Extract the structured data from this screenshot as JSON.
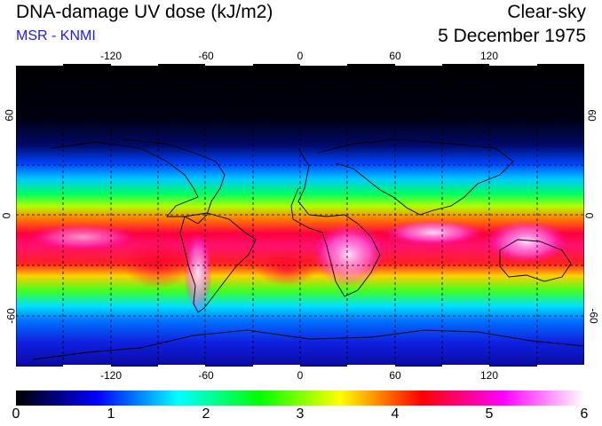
{
  "header": {
    "title": "DNA-damage UV dose (kJ/m2)",
    "subtitle": "MSR - KNMI",
    "condition": "Clear-sky",
    "date": "5 December 1975"
  },
  "map": {
    "lon_ticks": [
      "-120",
      "-60",
      "0",
      "60",
      "120"
    ],
    "lat_ticks": [
      "60",
      "0",
      "-60"
    ],
    "lon_range": [
      -180,
      180
    ],
    "lat_range": [
      -90,
      90
    ],
    "grid": "dashed every 30 degrees"
  },
  "colorbar": {
    "labels": [
      "0",
      "1",
      "2",
      "3",
      "4",
      "5",
      "6"
    ],
    "min": 0,
    "max": 6,
    "colors": [
      "#000000",
      "#0000ff",
      "#00ffff",
      "#00ff00",
      "#ffff00",
      "#ff0000",
      "#ff00ff",
      "#ffffff"
    ]
  }
}
